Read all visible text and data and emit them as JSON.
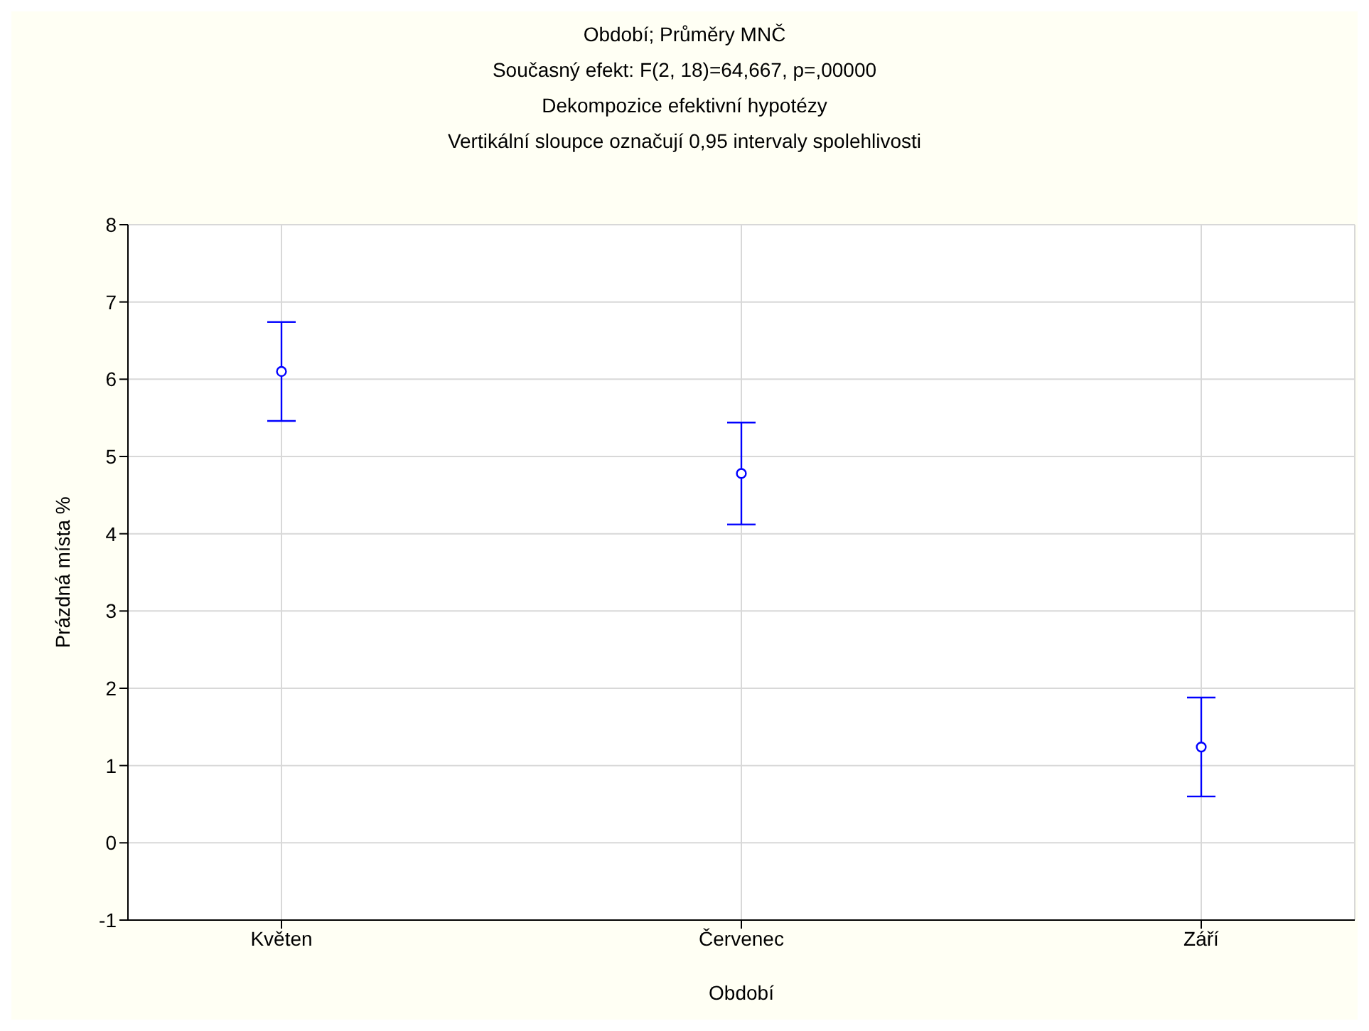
{
  "chart_data": {
    "type": "scatter",
    "title": "Období; Průměry MNČ",
    "annotations": [
      "Současný efekt: F(2, 18)=64,667, p=,00000",
      "Dekompozice efektivní hypotézy",
      "Vertikální sloupce označují 0,95 intervaly spolehlivosti"
    ],
    "xlabel": "Období",
    "ylabel": "Prázdná místa %",
    "categories": [
      "Květen",
      "Červenec",
      "Září"
    ],
    "series": [
      {
        "color": "#0000ff",
        "values": [
          6.1,
          4.78,
          1.24
        ],
        "errors": [
          0.64,
          0.66,
          0.64
        ]
      }
    ],
    "ylim": [
      -1,
      8
    ],
    "yticks": [
      -1,
      0,
      1,
      2,
      3,
      4,
      5,
      6,
      7,
      8
    ],
    "grid": true,
    "marker": "circle"
  }
}
